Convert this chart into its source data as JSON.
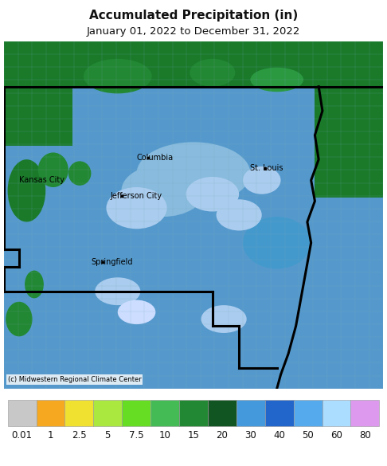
{
  "title": "Accumulated Precipitation (in)",
  "subtitle": "January 01, 2022 to December 31, 2022",
  "title_fontsize": 11,
  "subtitle_fontsize": 9.5,
  "colorbar_labels": [
    "0.01",
    "1",
    "2.5",
    "5",
    "7.5",
    "10",
    "15",
    "20",
    "30",
    "40",
    "50",
    "60",
    "80"
  ],
  "colorbar_colors": [
    "#c8c8c8",
    "#f5a820",
    "#f0e030",
    "#aae840",
    "#66dd22",
    "#44bb55",
    "#228833",
    "#115522",
    "#4499dd",
    "#2266cc",
    "#55aaee",
    "#aaddff",
    "#dd99ee"
  ],
  "copyright_text": "(c) Midwestern Regional Climate Center",
  "map_bg_color": "#5599cc",
  "fig_bg_color": "#ffffff",
  "colorbar_label_fontsize": 8.5,
  "green_dark": "#1a7a2a",
  "green_mid": "#228833",
  "blue_mid": "#4499cc",
  "blue_light": "#88bbdd",
  "blue_lighter": "#aaccee"
}
